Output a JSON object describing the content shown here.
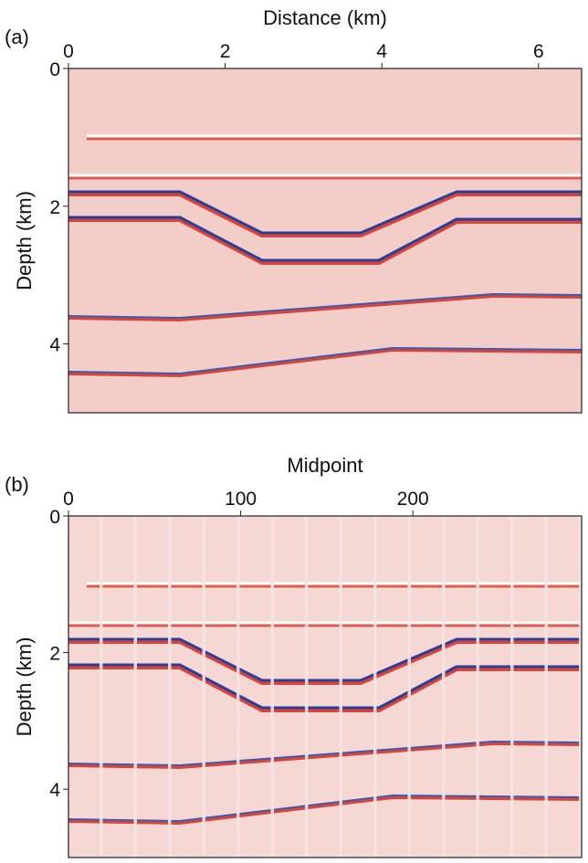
{
  "chart_data": [
    {
      "type": "image",
      "panel_label": "(a)",
      "xlabel": "Distance (km)",
      "ylabel": "Depth (km)",
      "xlim": [
        0,
        6.55
      ],
      "xticks": [
        0,
        2,
        4,
        6
      ],
      "ylim": [
        0,
        5
      ],
      "yticks": [
        0,
        2,
        4
      ],
      "yinverted": true
    },
    {
      "type": "image",
      "panel_label": "(b)",
      "xlabel": "Midpoint",
      "ylabel": "Depth (km)",
      "xlim": [
        0,
        298
      ],
      "xticks": [
        0,
        100,
        200
      ],
      "ylim": [
        0,
        5
      ],
      "yticks": [
        0,
        2,
        4
      ],
      "yinverted": true
    }
  ]
}
